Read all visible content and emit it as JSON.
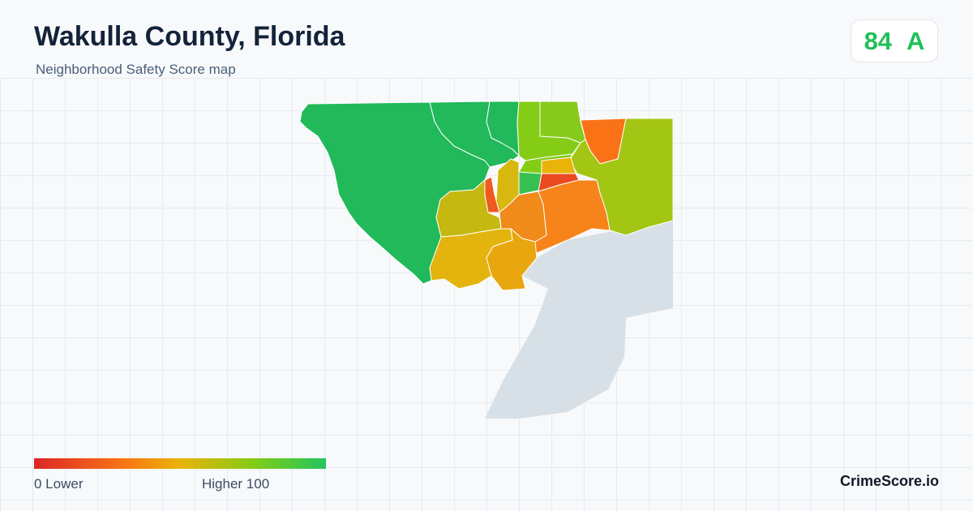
{
  "header": {
    "title": "Wakulla County, Florida",
    "subtitle": "Neighborhood Safety Score map"
  },
  "score": {
    "value": "84",
    "grade": "A",
    "color": "#22c05a"
  },
  "map": {
    "water_color": "#d8e0e7",
    "regions": [
      {
        "name": "west-forest",
        "color": "#21b959"
      },
      {
        "name": "north-central",
        "color": "#21b959"
      },
      {
        "name": "north-strip",
        "color": "#21b959"
      },
      {
        "name": "north-lime-a",
        "color": "#84cc16"
      },
      {
        "name": "north-lime-b",
        "color": "#86cb1c"
      },
      {
        "name": "northeast-orange",
        "color": "#f97316"
      },
      {
        "name": "east-large",
        "color": "#a3c514"
      },
      {
        "name": "central-lime",
        "color": "#84cc16"
      },
      {
        "name": "central-green",
        "color": "#39c052"
      },
      {
        "name": "central-yellow-small",
        "color": "#eab308"
      },
      {
        "name": "central-red",
        "color": "#ea4a21"
      },
      {
        "name": "central-olive",
        "color": "#c4b811"
      },
      {
        "name": "central-yellow-narrow",
        "color": "#d8b70e"
      },
      {
        "name": "west-red-sliver",
        "color": "#ef5a1e"
      },
      {
        "name": "central-orange",
        "color": "#f08a1a"
      },
      {
        "name": "east-orange",
        "color": "#f7841a"
      },
      {
        "name": "south-yellow-west",
        "color": "#e3b40d"
      },
      {
        "name": "south-yellow-east",
        "color": "#e8a70f"
      },
      {
        "name": "tiny-green",
        "color": "#29bd58"
      }
    ]
  },
  "legend": {
    "low_label": "0  Lower",
    "high_label": "Higher  100",
    "gradient": [
      "#dc2626",
      "#f97316",
      "#eab308",
      "#84cc16",
      "#22c55e"
    ]
  },
  "brand": "CrimeScore.io"
}
